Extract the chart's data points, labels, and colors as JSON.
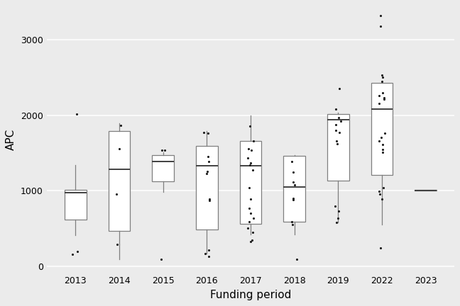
{
  "years": [
    2013,
    2014,
    2015,
    2016,
    2017,
    2018,
    2019,
    2022,
    2023
  ],
  "boxes": {
    "2013": {
      "q1": 620,
      "median": 975,
      "q3": 1010,
      "whislo": 410,
      "whishi": 1340,
      "fliers_below": [
        200,
        160
      ],
      "fliers_above": [
        2020
      ]
    },
    "2014": {
      "q1": 465,
      "median": 1290,
      "q3": 1790,
      "whislo": 90,
      "whishi": 1900,
      "fliers_below": [
        290
      ],
      "fliers_above": [
        960,
        1560,
        1870
      ]
    },
    "2015": {
      "q1": 1130,
      "median": 1390,
      "q3": 1470,
      "whislo": 990,
      "whishi": 1510,
      "fliers_below": [
        95,
        1540
      ],
      "fliers_above": [
        1540
      ]
    },
    "2016": {
      "q1": 490,
      "median": 1330,
      "q3": 1595,
      "whislo": 170,
      "whishi": 1790,
      "fliers_below": [
        130,
        170,
        220,
        870,
        890
      ],
      "fliers_above": [
        1230,
        1260,
        1390,
        1450,
        1760,
        1770
      ]
    },
    "2017": {
      "q1": 560,
      "median": 1330,
      "q3": 1660,
      "whislo": 420,
      "whishi": 2000,
      "fliers_below": [
        330,
        350,
        450,
        510
      ],
      "fliers_above": [
        590,
        640,
        700,
        770,
        890,
        1040,
        1280,
        1340,
        1370,
        1440,
        1540,
        1560,
        1660,
        1860
      ]
    },
    "2018": {
      "q1": 590,
      "median": 1055,
      "q3": 1460,
      "whislo": 420,
      "whishi": 1475,
      "fliers_below": [
        95,
        555,
        590
      ],
      "fliers_above": [
        880,
        900,
        1080,
        1120,
        1250,
        1390
      ]
    },
    "2019": {
      "q1": 1140,
      "median": 1940,
      "q3": 2020,
      "whislo": 580,
      "whishi": 2040,
      "fliers_below": [
        580,
        640,
        730,
        795
      ],
      "fliers_above": [
        1625,
        1665,
        1775,
        1800,
        1875,
        1925,
        1970,
        2080,
        2360
      ]
    },
    "2022": {
      "q1": 1215,
      "median": 2080,
      "q3": 2435,
      "whislo": 550,
      "whishi": 2455,
      "fliers_below": [
        240,
        895,
        955,
        995,
        1045
      ],
      "fliers_above": [
        1510,
        1550,
        1610,
        1665,
        1710,
        1760,
        2155,
        2210,
        2235,
        2265,
        2295,
        2445,
        2505,
        2535,
        3185,
        3325
      ]
    },
    "2023": {
      "q1": 1002,
      "median": 1008,
      "q3": 1014,
      "whislo": 1002,
      "whishi": 1014,
      "fliers_below": [],
      "fliers_above": []
    }
  },
  "xlabel": "Funding period",
  "ylabel": "APC",
  "ylim": [
    -80,
    3450
  ],
  "yticks": [
    0,
    1000,
    2000,
    3000
  ],
  "bg_color": "#ebebeb",
  "box_face": "#ffffff",
  "box_edge": "#7f7f7f",
  "median_color": "#404040",
  "whisker_color": "#7f7f7f",
  "cap_color": "#7f7f7f",
  "flier_color": "#1a1a1a",
  "grid_color": "#ffffff",
  "box_width": 0.5,
  "xlabel_fontsize": 11,
  "ylabel_fontsize": 11,
  "tick_fontsize": 9
}
